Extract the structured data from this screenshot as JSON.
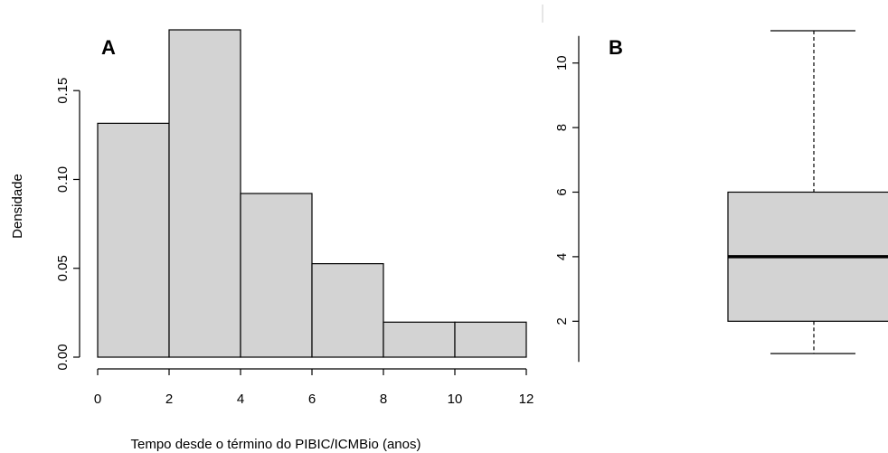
{
  "chart_data": [
    {
      "panel_label": "A",
      "type": "bar",
      "subtype": "histogram",
      "bins": [
        [
          0,
          2
        ],
        [
          2,
          4
        ],
        [
          4,
          6
        ],
        [
          6,
          8
        ],
        [
          8,
          10
        ],
        [
          10,
          12
        ]
      ],
      "values": [
        0.1316,
        0.1842,
        0.0921,
        0.0526,
        0.0197,
        0.0197
      ],
      "xlabel": "Tempo desde o término do PIBIC/ICMBio (anos)",
      "ylabel": "Densidade",
      "xlim": [
        0,
        12
      ],
      "ylim": [
        0,
        0.1842
      ],
      "x_ticks": [
        "0",
        "2",
        "4",
        "6",
        "8",
        "10",
        "12"
      ],
      "y_ticks": [
        "0.00",
        "0.05",
        "0.10",
        "0.15"
      ],
      "bar_color": "#d3d3d3",
      "grid": false
    },
    {
      "panel_label": "B",
      "type": "box",
      "stats": {
        "min": 1,
        "q1": 2,
        "median": 4,
        "q3": 6,
        "max": 11
      },
      "ylim": [
        1,
        11
      ],
      "y_ticks": [
        "2",
        "4",
        "6",
        "8",
        "10"
      ],
      "box_color": "#d3d3d3",
      "grid": false
    }
  ]
}
